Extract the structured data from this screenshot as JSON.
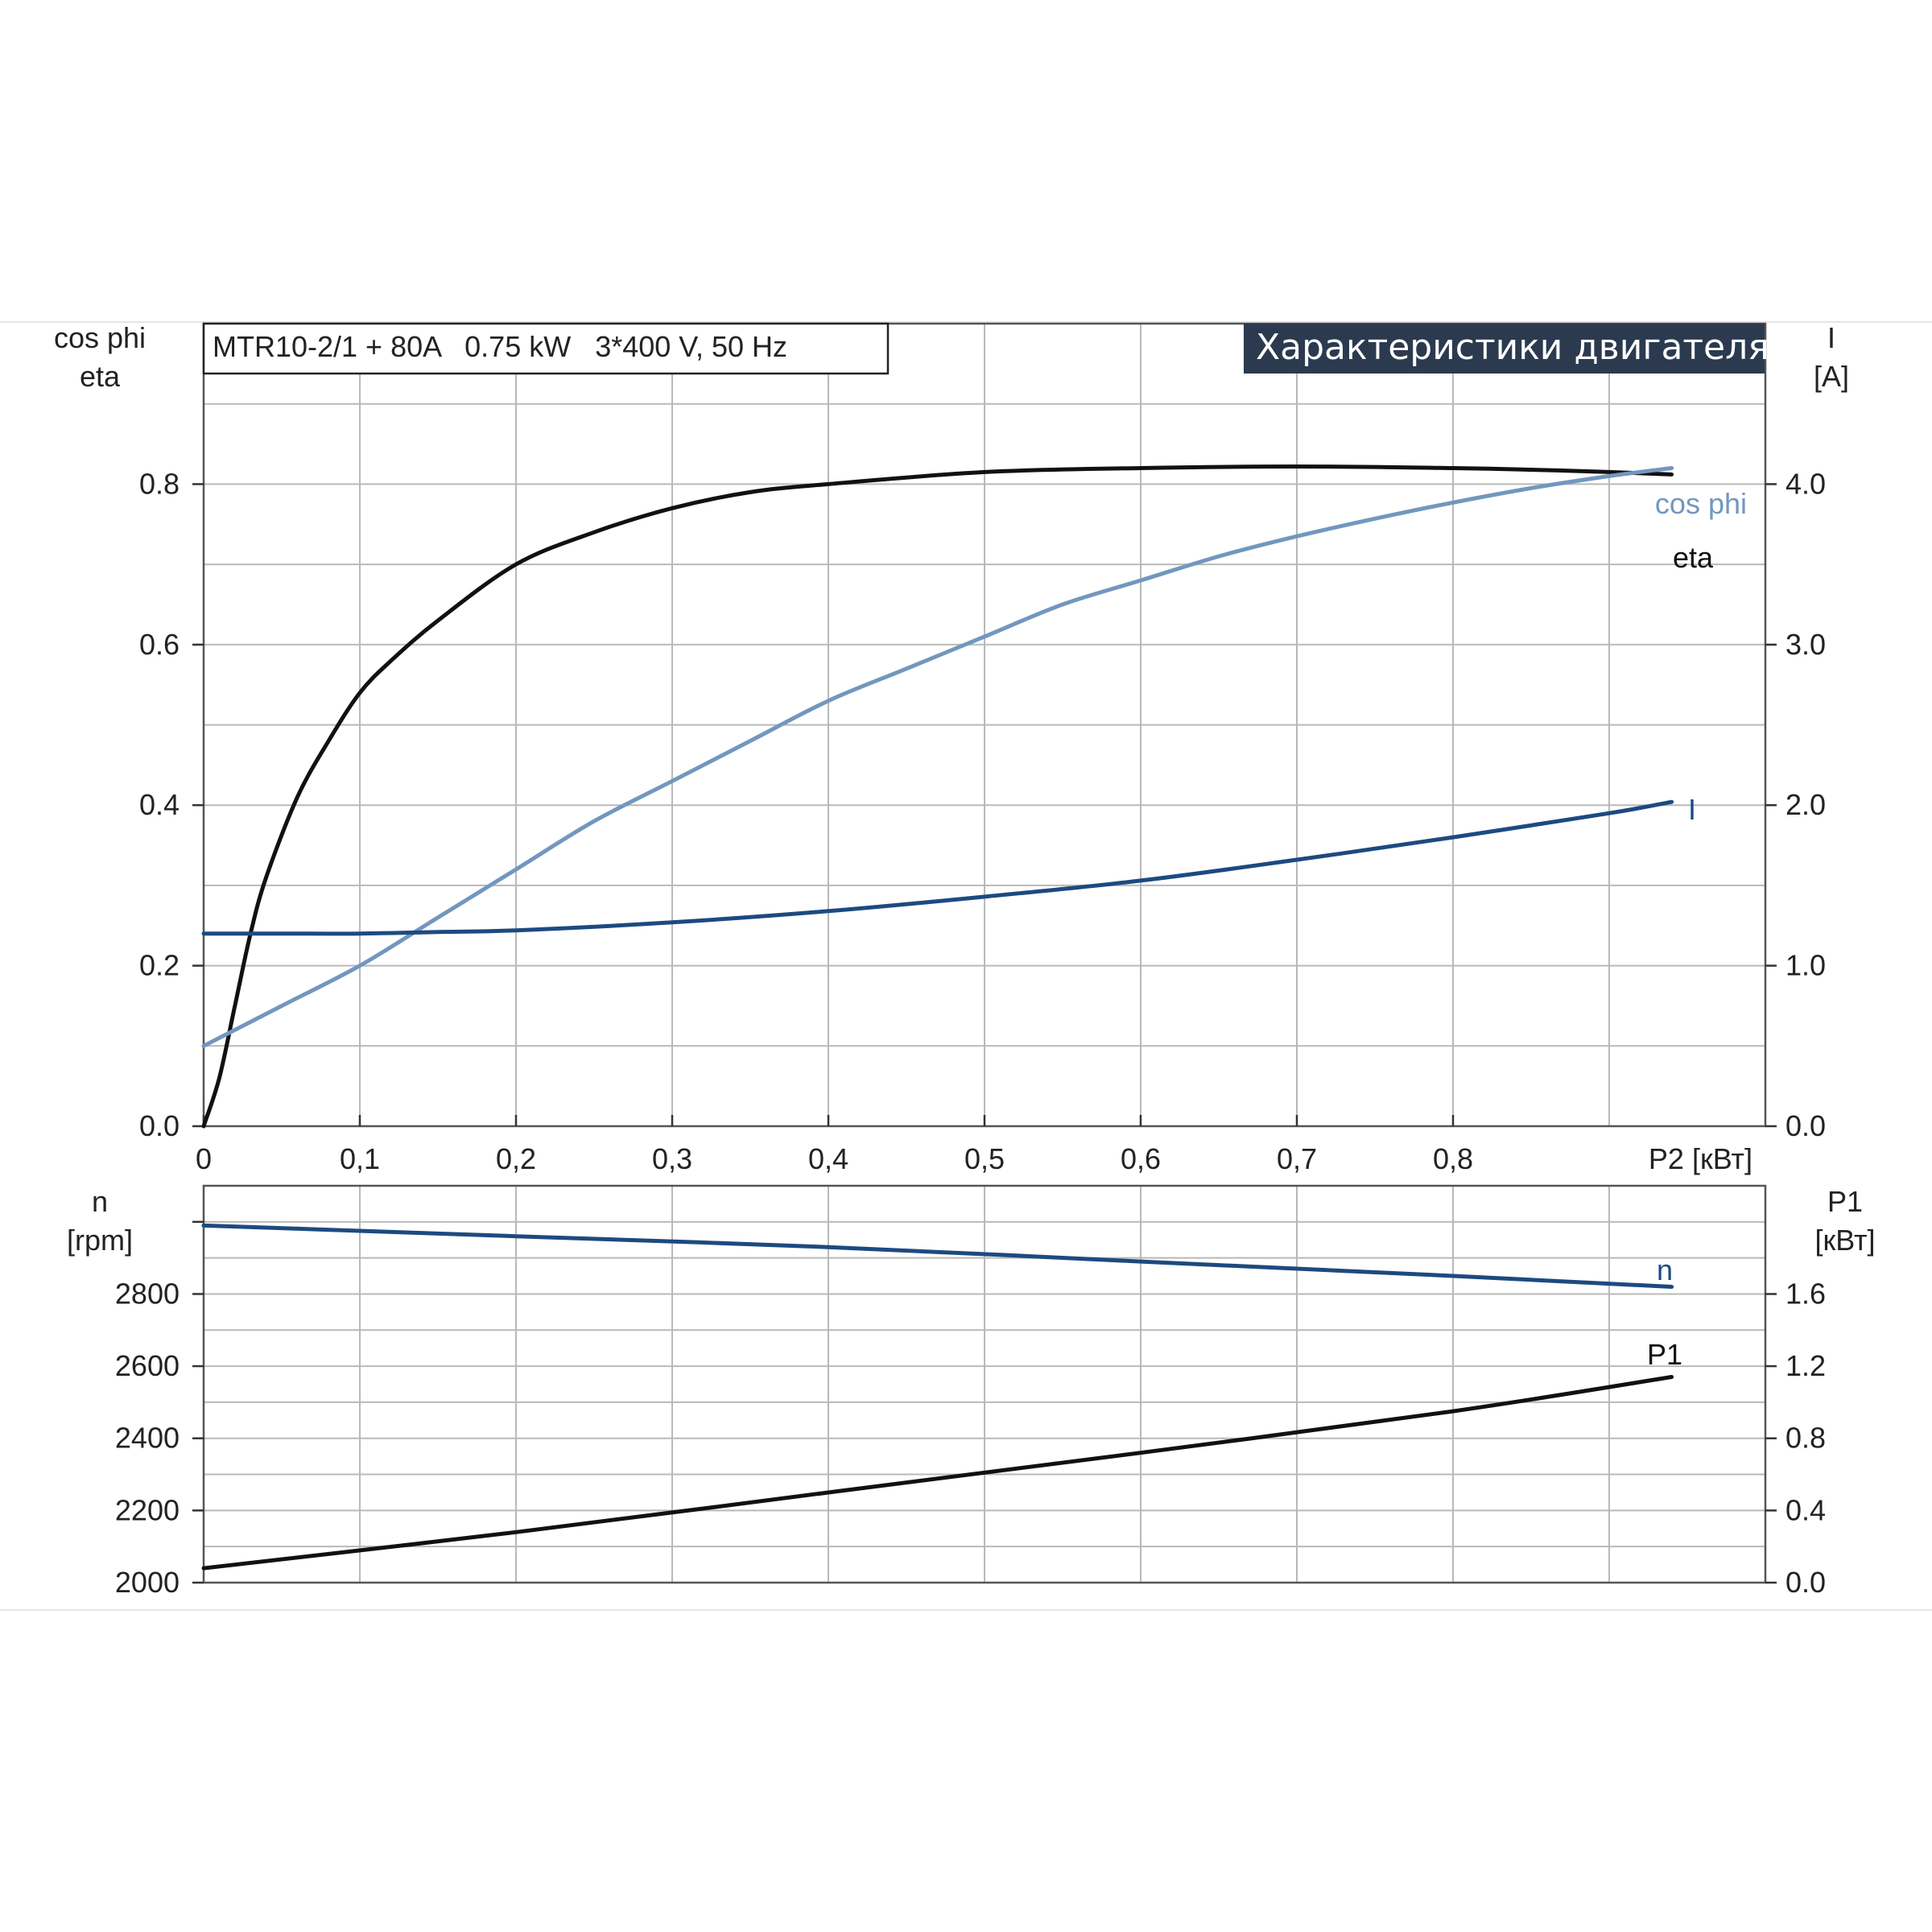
{
  "info_box": "MTR10-2/1 + 80A   0.75 kW   3*400 V, 50 Hz",
  "title": "Характеристики двигателя",
  "colors": {
    "title_bg": "#2b3a4f",
    "eta": "#111111",
    "cos_phi": "#7297be",
    "current": "#1c4a80",
    "speed": "#1c4a80",
    "p1": "#111111"
  },
  "chart_data": [
    {
      "type": "line",
      "panel": "top",
      "title": "Характеристики двигателя",
      "xlabel": "P2 [кВт]",
      "xlim": [
        0,
        1.0
      ],
      "x_ticks": [
        "0",
        "0,1",
        "0,2",
        "0,3",
        "0,4",
        "0,5",
        "0,6",
        "0,7",
        "0,8"
      ],
      "y_left_label_line1": "cos phi",
      "y_left_label_line2": "eta",
      "y_left_lim": [
        0,
        1.0
      ],
      "y_left_ticks": [
        "0.0",
        "0.2",
        "0.4",
        "0.6",
        "0.8"
      ],
      "y_right_label_line1": "I",
      "y_right_label_line2": "[A]",
      "y_right_lim": [
        0,
        5.0
      ],
      "y_right_ticks": [
        "0.0",
        "1.0",
        "2.0",
        "3.0",
        "4.0"
      ],
      "grid": true,
      "series": [
        {
          "name": "eta",
          "axis": "left",
          "x": [
            0,
            0.01,
            0.02,
            0.03,
            0.04,
            0.06,
            0.08,
            0.1,
            0.12,
            0.15,
            0.2,
            0.25,
            0.3,
            0.35,
            0.4,
            0.5,
            0.6,
            0.7,
            0.8,
            0.85,
            0.9,
            0.94
          ],
          "values": [
            0,
            0.06,
            0.15,
            0.24,
            0.31,
            0.41,
            0.48,
            0.54,
            0.58,
            0.63,
            0.7,
            0.74,
            0.77,
            0.79,
            0.8,
            0.815,
            0.82,
            0.822,
            0.82,
            0.818,
            0.815,
            0.812
          ]
        },
        {
          "name": "cos phi",
          "axis": "left",
          "x": [
            0,
            0.05,
            0.1,
            0.15,
            0.2,
            0.25,
            0.3,
            0.35,
            0.4,
            0.45,
            0.5,
            0.55,
            0.6,
            0.65,
            0.7,
            0.75,
            0.8,
            0.85,
            0.9,
            0.94
          ],
          "values": [
            0.1,
            0.15,
            0.2,
            0.26,
            0.32,
            0.38,
            0.43,
            0.48,
            0.53,
            0.57,
            0.61,
            0.65,
            0.68,
            0.71,
            0.735,
            0.757,
            0.777,
            0.795,
            0.81,
            0.82
          ]
        },
        {
          "name": "I",
          "axis": "right",
          "x": [
            0,
            0.05,
            0.1,
            0.15,
            0.2,
            0.3,
            0.4,
            0.5,
            0.6,
            0.7,
            0.8,
            0.9,
            0.94
          ],
          "values": [
            1.2,
            1.2,
            1.2,
            1.21,
            1.22,
            1.27,
            1.34,
            1.43,
            1.53,
            1.66,
            1.8,
            1.95,
            2.02
          ]
        }
      ],
      "labels": {
        "eta": "eta",
        "cos_phi": "cos phi",
        "current": "I"
      }
    },
    {
      "type": "line",
      "panel": "bottom",
      "xlim": [
        0,
        1.0
      ],
      "y_left_label_line1": "n",
      "y_left_label_line2": "[rpm]",
      "y_left_lim": [
        2000,
        3100
      ],
      "y_left_ticks": [
        "2000",
        "2200",
        "2400",
        "2600",
        "2800"
      ],
      "y_right_label_line1": "P1",
      "y_right_label_line2": "[кВт]",
      "y_right_lim": [
        0,
        2.2
      ],
      "y_right_ticks": [
        "0.0",
        "0.4",
        "0.8",
        "1.2",
        "1.6"
      ],
      "grid": true,
      "series": [
        {
          "name": "n",
          "axis": "left",
          "x": [
            0,
            0.2,
            0.4,
            0.6,
            0.8,
            0.94
          ],
          "values": [
            2990,
            2960,
            2930,
            2890,
            2850,
            2820
          ]
        },
        {
          "name": "P1",
          "axis": "right",
          "x": [
            0,
            0.2,
            0.4,
            0.6,
            0.8,
            0.94
          ],
          "values": [
            0.08,
            0.28,
            0.5,
            0.72,
            0.95,
            1.14
          ]
        }
      ],
      "labels": {
        "n": "n",
        "p1": "P1"
      }
    }
  ]
}
